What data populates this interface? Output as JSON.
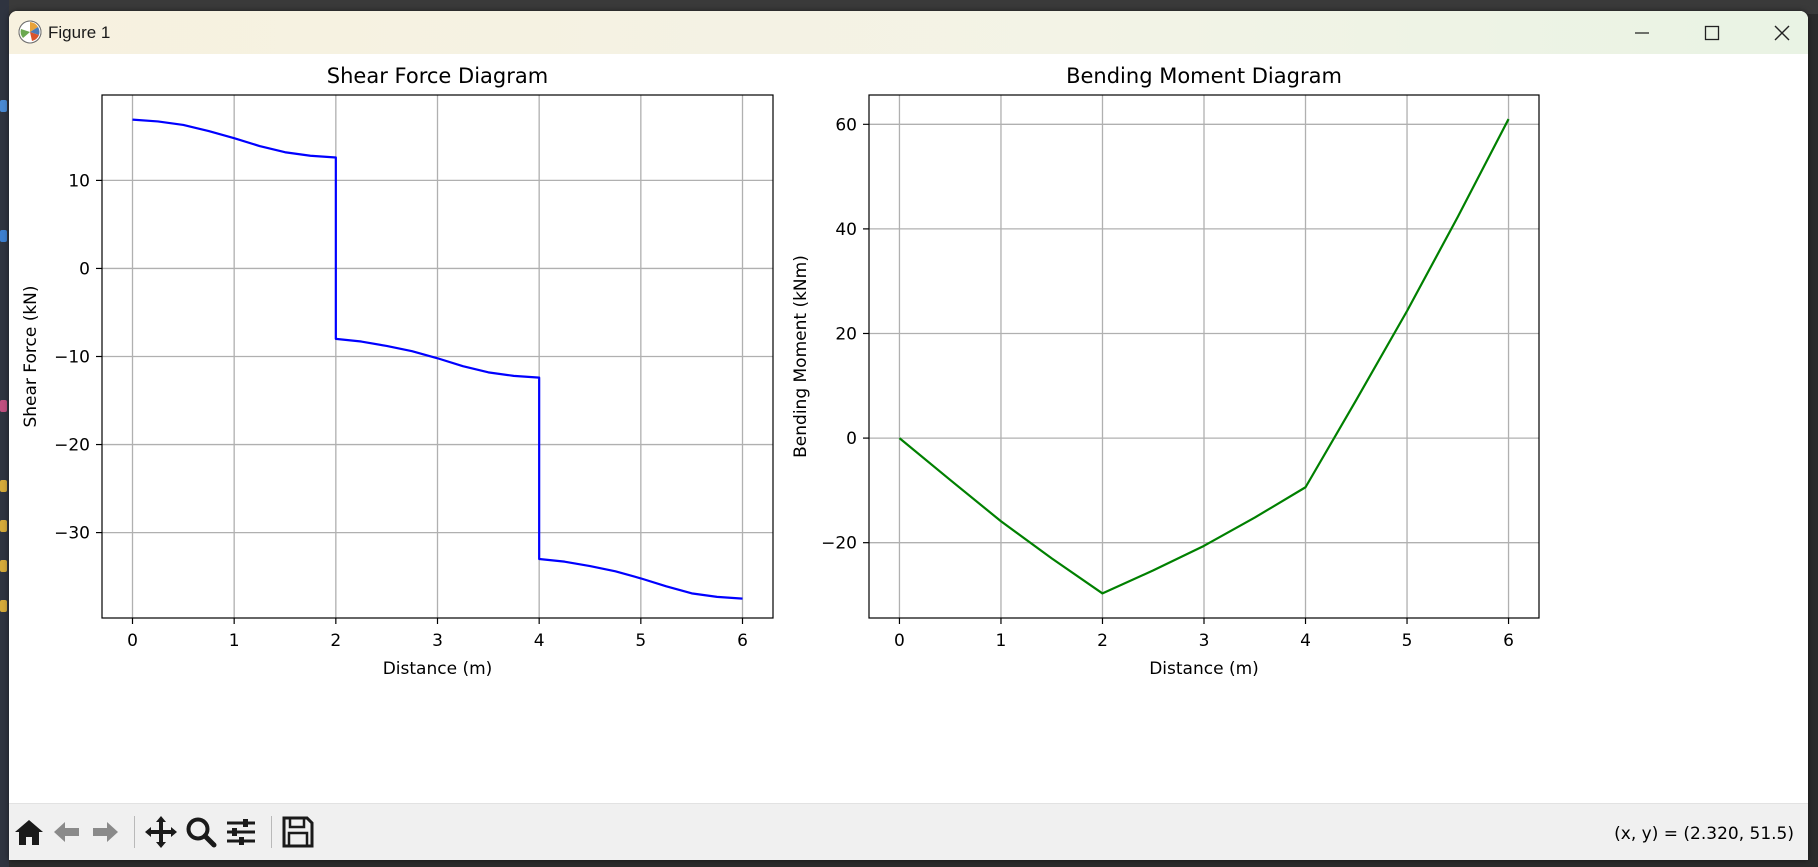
{
  "window": {
    "title": "Figure 1"
  },
  "toolbar": {
    "buttons": [
      "home-icon",
      "back-arrow-icon",
      "forward-arrow-icon",
      "pan-icon",
      "zoom-icon",
      "configure-subplots-icon",
      "save-icon"
    ],
    "coords_text": "(x, y) = (2.320, 51.5)"
  },
  "colors": {
    "shear_line": "#0000ff",
    "moment_line": "#008000",
    "grid": "#b0b0b0"
  },
  "chart_data": [
    {
      "type": "line",
      "title": "Shear Force Diagram",
      "xlabel": "Distance (m)",
      "ylabel": "Shear Force (kN)",
      "xlim": [
        -0.3,
        6.3
      ],
      "ylim": [
        -39.7,
        19.7
      ],
      "xticks": [
        0,
        1,
        2,
        3,
        4,
        5,
        6
      ],
      "yticks": [
        10,
        0,
        -10,
        -20,
        -30
      ],
      "ytick_labels": [
        "10",
        "0",
        "−10",
        "−20",
        "−30"
      ],
      "grid": true,
      "series": [
        {
          "x": [
            0,
            0.25,
            0.5,
            0.75,
            1.0,
            1.25,
            1.5,
            1.75,
            2.0,
            2.0,
            2.25,
            2.5,
            2.75,
            3.0,
            3.25,
            3.5,
            3.75,
            4.0,
            4.0,
            4.25,
            4.5,
            4.75,
            5.0,
            5.25,
            5.5,
            5.75,
            6.0
          ],
          "y": [
            16.9,
            16.7,
            16.3,
            15.6,
            14.8,
            13.9,
            13.2,
            12.8,
            12.6,
            -8.0,
            -8.3,
            -8.8,
            -9.4,
            -10.2,
            -11.1,
            -11.8,
            -12.2,
            -12.4,
            -33.0,
            -33.3,
            -33.8,
            -34.4,
            -35.2,
            -36.1,
            -36.9,
            -37.3,
            -37.5
          ]
        }
      ]
    },
    {
      "type": "line",
      "title": "Bending Moment Diagram",
      "xlabel": "Distance (m)",
      "ylabel": "Bending Moment (kNm)",
      "xlim": [
        -0.3,
        6.3
      ],
      "ylim": [
        -34.4,
        65.6
      ],
      "xticks": [
        0,
        1,
        2,
        3,
        4,
        5,
        6
      ],
      "yticks": [
        60,
        40,
        20,
        0,
        -20
      ],
      "ytick_labels": [
        "60",
        "40",
        "20",
        "0",
        "−20"
      ],
      "grid": true,
      "series": [
        {
          "x": [
            0,
            0.5,
            1.0,
            1.5,
            2.0,
            2.5,
            3.0,
            3.5,
            4.0,
            4.5,
            5.0,
            5.5,
            6.0
          ],
          "y": [
            0,
            -8.0,
            -15.9,
            -23.0,
            -29.7,
            -25.3,
            -20.6,
            -15.2,
            -9.4,
            7.3,
            24.3,
            42.3,
            61.0
          ]
        }
      ]
    }
  ]
}
